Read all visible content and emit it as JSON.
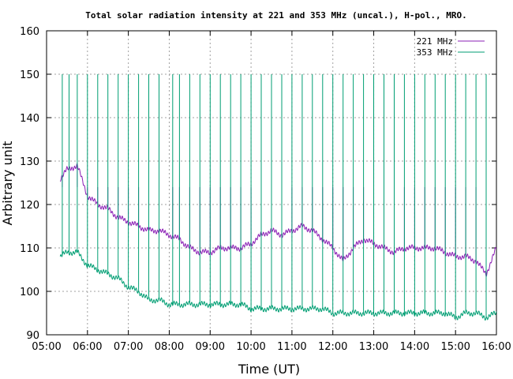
{
  "chart_data": {
    "type": "line",
    "title": "Total solar radiation intensity at 221 and 353 MHz (uncal.), H-pol., MRO.",
    "xlabel": "Time (UT)",
    "ylabel": "Arbitrary unit",
    "xlim": [
      "05:00",
      "16:00"
    ],
    "ylim": [
      90,
      160
    ],
    "x_ticks": [
      "05:00",
      "06:00",
      "07:00",
      "08:00",
      "09:00",
      "10:00",
      "11:00",
      "12:00",
      "13:00",
      "14:00",
      "15:00",
      "16:00"
    ],
    "y_ticks": [
      "90",
      "100",
      "110",
      "120",
      "130",
      "140",
      "150",
      "160"
    ],
    "grid": true,
    "legend_position": "top-right",
    "series": [
      {
        "name": "221 MHz",
        "color": "#8b1fb5",
        "x": [
          "05:20",
          "05:30",
          "05:45",
          "06:00",
          "06:15",
          "06:30",
          "06:45",
          "07:00",
          "07:15",
          "07:30",
          "07:45",
          "08:00",
          "08:15",
          "08:30",
          "08:45",
          "09:00",
          "09:15",
          "09:30",
          "09:45",
          "10:00",
          "10:15",
          "10:30",
          "10:45",
          "11:00",
          "11:15",
          "11:30",
          "11:45",
          "12:00",
          "12:15",
          "12:30",
          "12:45",
          "13:00",
          "13:15",
          "13:30",
          "13:45",
          "14:00",
          "14:15",
          "14:30",
          "14:45",
          "15:00",
          "15:15",
          "15:30",
          "15:45",
          "16:00"
        ],
        "y": [
          126,
          128,
          129,
          122,
          120,
          119,
          117,
          116,
          115,
          114,
          114,
          113,
          112,
          110,
          109,
          109,
          110,
          110,
          110,
          111,
          113,
          114,
          113,
          114,
          115,
          114,
          112,
          110,
          107,
          110,
          112,
          111,
          110,
          109,
          110,
          110,
          110,
          110,
          109,
          108,
          108,
          107,
          104,
          110
        ],
        "spike_times": [
          "05:23",
          "05:33",
          "05:45",
          "06:00",
          "06:15",
          "06:30",
          "06:45",
          "07:00",
          "07:15",
          "07:30",
          "07:45",
          "08:05",
          "08:15",
          "08:30",
          "08:45",
          "09:00",
          "09:15",
          "09:30",
          "09:45",
          "10:00",
          "10:15",
          "10:30",
          "10:45",
          "11:00",
          "11:15",
          "11:30",
          "11:45",
          "12:00",
          "12:15",
          "12:30",
          "12:45",
          "13:00",
          "13:15",
          "13:30",
          "13:45",
          "14:00",
          "14:15",
          "14:30",
          "14:45",
          "15:00",
          "15:15",
          "15:30",
          "15:45"
        ],
        "spike_peak": 124
      },
      {
        "name": "353 MHz",
        "color": "#009e73",
        "x": [
          "05:20",
          "05:30",
          "05:45",
          "06:00",
          "06:15",
          "06:30",
          "06:45",
          "07:00",
          "07:15",
          "07:30",
          "07:45",
          "08:00",
          "08:15",
          "08:30",
          "08:45",
          "09:00",
          "09:15",
          "09:30",
          "09:45",
          "10:00",
          "10:15",
          "10:30",
          "10:45",
          "11:00",
          "11:15",
          "11:30",
          "11:45",
          "12:00",
          "12:15",
          "12:30",
          "12:45",
          "13:00",
          "13:15",
          "13:30",
          "13:45",
          "14:00",
          "14:15",
          "14:30",
          "14:45",
          "15:00",
          "15:15",
          "15:30",
          "15:45",
          "16:00"
        ],
        "y": [
          108,
          109,
          109,
          106,
          105,
          104,
          103,
          101,
          100,
          98,
          98,
          97,
          97,
          97,
          97,
          97,
          97,
          97,
          97,
          96,
          96,
          96,
          96,
          96,
          96,
          96,
          96,
          95,
          95,
          95,
          95,
          95,
          95,
          95,
          95,
          95,
          95,
          95,
          95,
          94,
          95,
          95,
          94,
          95
        ],
        "spike_times": [
          "05:23",
          "05:33",
          "05:45",
          "06:00",
          "06:15",
          "06:30",
          "06:45",
          "07:00",
          "07:15",
          "07:30",
          "07:45",
          "08:05",
          "08:15",
          "08:30",
          "08:45",
          "09:00",
          "09:15",
          "09:30",
          "09:45",
          "10:00",
          "10:15",
          "10:30",
          "10:45",
          "11:00",
          "11:15",
          "11:30",
          "11:45",
          "12:00",
          "12:15",
          "12:30",
          "12:45",
          "13:00",
          "13:15",
          "13:30",
          "13:45",
          "14:00",
          "14:15",
          "14:30",
          "14:45",
          "15:00",
          "15:15",
          "15:30",
          "15:45"
        ],
        "spike_peak": 150
      }
    ]
  }
}
